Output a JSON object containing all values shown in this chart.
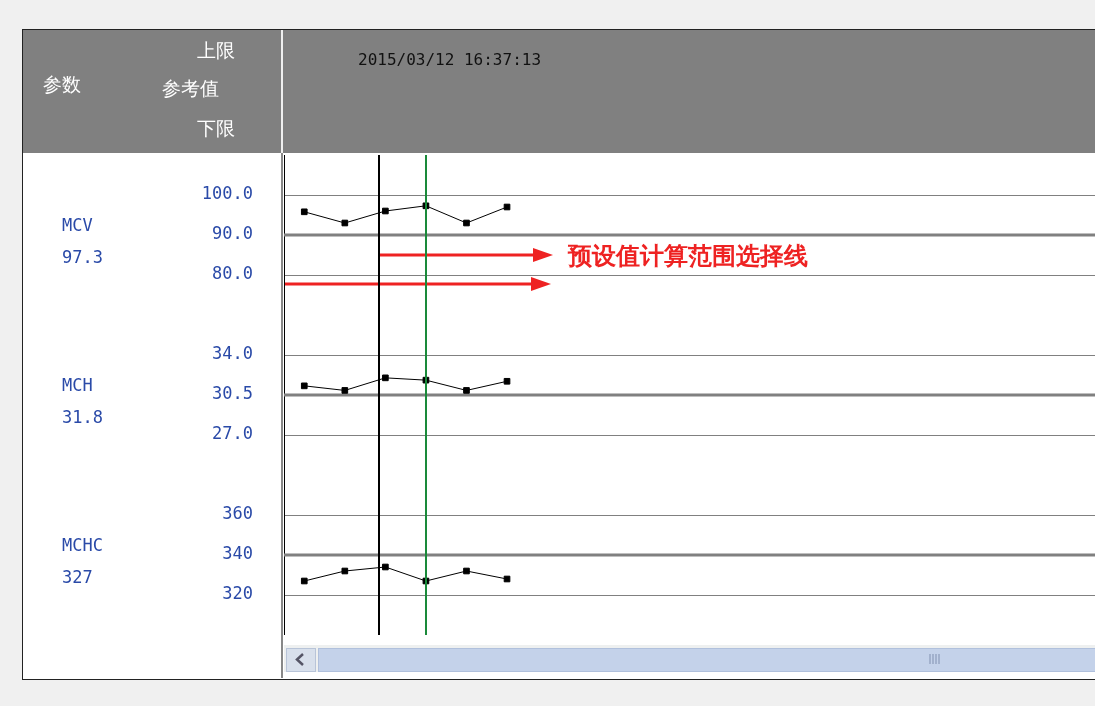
{
  "chart_data": [
    {
      "type": "other",
      "annotations": [
        "参数",
        "上限",
        "参考值",
        "下限",
        "2015/03/12 16:37:13"
      ]
    },
    {
      "type": "line",
      "ylabel": "MCV",
      "annotations": [
        "97.3",
        "预设值计算范围选择线"
      ],
      "categories": [
        null,
        null,
        null,
        null,
        null,
        null,
        null,
        null,
        null,
        null,
        null,
        null,
        null,
        null,
        null,
        null,
        null,
        null,
        null,
        null
      ],
      "ylim": [
        70,
        110
      ],
      "yticks": [
        {
          "value": 100,
          "label": "100.0"
        },
        {
          "value": 90,
          "label": "90.0"
        },
        {
          "value": 80,
          "label": "80.0"
        }
      ],
      "grid": "y",
      "tick_labels": "y",
      "marker": "square",
      "line_style": "solid",
      "series": [
        {
          "color": "#000000",
          "values": [
            95.8,
            93.0,
            96.0,
            97.3,
            93.0,
            97.0,
            null,
            null,
            null,
            null,
            null,
            null,
            null,
            null,
            null,
            null,
            null,
            null,
            null,
            null
          ]
        }
      ],
      "ref_lines": [
        {
          "axis": "y",
          "value": 90,
          "color": "#808080"
        }
      ]
    },
    {
      "type": "line",
      "ylabel": "MCH",
      "annotations": [
        "31.8"
      ],
      "categories": [
        null,
        null,
        null,
        null,
        null,
        null,
        null,
        null,
        null,
        null,
        null,
        null,
        null,
        null,
        null,
        null,
        null,
        null,
        null,
        null
      ],
      "ylim": [
        23.5,
        37.5
      ],
      "yticks": [
        {
          "value": 34,
          "label": "34.0"
        },
        {
          "value": 30.5,
          "label": "30.5"
        },
        {
          "value": 27,
          "label": "27.0"
        }
      ],
      "grid": "y",
      "tick_labels": "y",
      "marker": "square",
      "line_style": "solid",
      "series": [
        {
          "color": "#000000",
          "values": [
            31.3,
            30.9,
            32.0,
            31.8,
            30.9,
            31.7,
            null,
            null,
            null,
            null,
            null,
            null,
            null,
            null,
            null,
            null,
            null,
            null,
            null,
            null
          ]
        }
      ],
      "ref_lines": [
        {
          "axis": "y",
          "value": 30.5,
          "color": "#808080"
        }
      ]
    },
    {
      "type": "line",
      "ylabel": "MCHC",
      "annotations": [
        "327"
      ],
      "categories": [
        null,
        null,
        null,
        null,
        null,
        null,
        null,
        null,
        null,
        null,
        null,
        null,
        null,
        null,
        null,
        null,
        null,
        null,
        null,
        null
      ],
      "ylim": [
        300,
        380
      ],
      "yticks": [
        360,
        340,
        320
      ],
      "grid": "y",
      "tick_labels": "y",
      "marker": "square",
      "line_style": "solid",
      "series": [
        {
          "color": "#000000",
          "values": [
            327,
            332,
            334,
            327,
            332,
            328,
            null,
            null,
            null,
            null,
            null,
            null,
            null,
            null,
            null,
            null,
            null,
            null,
            null,
            null
          ]
        }
      ],
      "ref_lines": [
        {
          "axis": "y",
          "value": 340,
          "color": "#808080"
        }
      ]
    }
  ]
}
